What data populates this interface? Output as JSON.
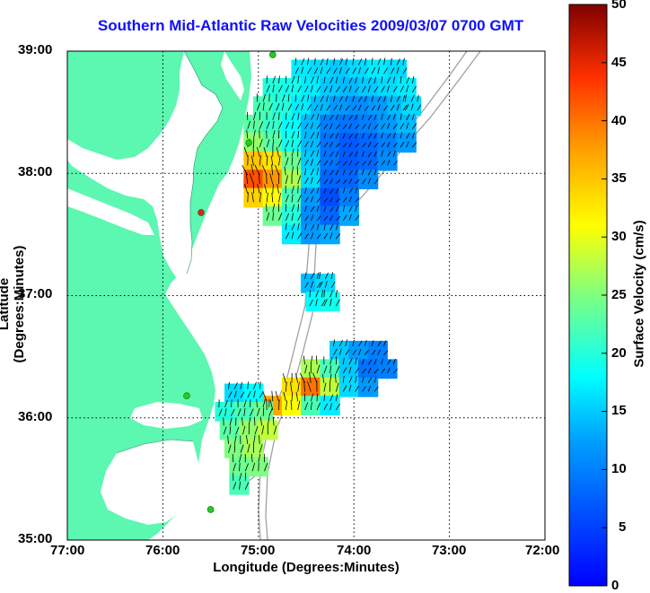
{
  "title": "Southern Mid-Atlantic Raw Velocities 2009/03/07 0700 GMT",
  "x_axis": {
    "label": "Longitude (Degrees:Minutes)",
    "ticks": [
      "77:00",
      "76:00",
      "75:00",
      "74:00",
      "73:00",
      "72:00"
    ]
  },
  "y_axis": {
    "label": "Latitude (Degrees:Minutes)",
    "ticks": [
      "39:00",
      "38:00",
      "37:00",
      "36:00",
      "35:00"
    ]
  },
  "colorbar": {
    "label": "Surface Velocity (cm/s)",
    "ticks": [
      "50",
      "45",
      "40",
      "35",
      "30",
      "25",
      "20",
      "15",
      "10",
      "5",
      "0"
    ],
    "min": 0,
    "max": 50,
    "colormap": "jet"
  },
  "colors": {
    "title": "#1010ff",
    "land": "#5cf7b0",
    "ocean": "#ffffff",
    "bathymetry": "#a0a0a0",
    "grid": "#000000",
    "station_active": "#22cc22",
    "station_alert": "#dd2222"
  },
  "map": {
    "lon_range": [
      -77,
      -72
    ],
    "lat_range": [
      35,
      39
    ],
    "grid": "dotted"
  },
  "chart_data": {
    "type": "heatmap",
    "title": "Southern Mid-Atlantic Raw Velocities 2009/03/07 0700 GMT",
    "xlabel": "Longitude (Degrees:Minutes)",
    "ylabel": "Latitude (Degrees:Minutes)",
    "xlim": [
      -77,
      -72
    ],
    "ylim": [
      35,
      39
    ],
    "color_scale": {
      "label": "Surface Velocity (cm/s)",
      "min": 0,
      "max": 50
    },
    "regions": [
      {
        "cells": [
          [
            -74.55,
            38.85,
            17
          ],
          [
            -74.35,
            38.85,
            16
          ],
          [
            -74.15,
            38.85,
            15
          ],
          [
            -73.95,
            38.85,
            16
          ],
          [
            -73.75,
            38.85,
            17
          ],
          [
            -73.55,
            38.85,
            16
          ],
          [
            -74.85,
            38.7,
            20
          ],
          [
            -74.65,
            38.7,
            19
          ],
          [
            -74.45,
            38.7,
            17
          ],
          [
            -74.25,
            38.7,
            15
          ],
          [
            -74.05,
            38.7,
            14
          ],
          [
            -73.85,
            38.7,
            15
          ],
          [
            -73.65,
            38.7,
            16
          ],
          [
            -73.45,
            38.7,
            17
          ],
          [
            -74.95,
            38.55,
            22
          ],
          [
            -74.75,
            38.55,
            20
          ],
          [
            -74.55,
            38.55,
            17
          ],
          [
            -74.35,
            38.55,
            14
          ],
          [
            -74.15,
            38.55,
            12
          ],
          [
            -73.95,
            38.55,
            11
          ],
          [
            -73.75,
            38.55,
            12
          ],
          [
            -73.55,
            38.55,
            14
          ],
          [
            -73.4,
            38.55,
            16
          ],
          [
            -75.05,
            38.4,
            23
          ],
          [
            -74.85,
            38.4,
            21
          ],
          [
            -74.65,
            38.4,
            18
          ],
          [
            -74.45,
            38.4,
            14
          ],
          [
            -74.25,
            38.4,
            10
          ],
          [
            -74.05,
            38.4,
            9
          ],
          [
            -73.85,
            38.4,
            10
          ],
          [
            -73.65,
            38.4,
            12
          ],
          [
            -73.45,
            38.4,
            14
          ],
          [
            -75.05,
            38.25,
            26
          ],
          [
            -74.85,
            38.25,
            23
          ],
          [
            -74.65,
            38.25,
            19
          ],
          [
            -74.45,
            38.25,
            14
          ],
          [
            -74.25,
            38.25,
            9
          ],
          [
            -74.05,
            38.25,
            7
          ],
          [
            -73.85,
            38.25,
            8
          ],
          [
            -73.65,
            38.25,
            10
          ],
          [
            -73.45,
            38.25,
            12
          ],
          [
            -75.05,
            38.1,
            35
          ],
          [
            -74.85,
            38.1,
            33
          ],
          [
            -74.65,
            38.1,
            24
          ],
          [
            -74.45,
            38.1,
            15
          ],
          [
            -74.25,
            38.1,
            9
          ],
          [
            -74.05,
            38.1,
            7
          ],
          [
            -73.85,
            38.1,
            8
          ],
          [
            -73.65,
            38.1,
            11
          ],
          [
            -75.05,
            37.95,
            42
          ],
          [
            -74.85,
            37.95,
            38
          ],
          [
            -74.65,
            37.95,
            27
          ],
          [
            -74.45,
            37.95,
            16
          ],
          [
            -74.25,
            37.95,
            8
          ],
          [
            -74.05,
            37.95,
            8
          ],
          [
            -73.85,
            37.95,
            11
          ],
          [
            -75.05,
            37.8,
            34
          ],
          [
            -74.85,
            37.8,
            31
          ],
          [
            -74.65,
            37.8,
            22
          ],
          [
            -74.45,
            37.8,
            12
          ],
          [
            -74.25,
            37.8,
            6
          ],
          [
            -74.05,
            37.8,
            10
          ],
          [
            -74.85,
            37.65,
            24
          ],
          [
            -74.65,
            37.65,
            20
          ],
          [
            -74.45,
            37.65,
            11
          ],
          [
            -74.25,
            37.65,
            8
          ],
          [
            -74.05,
            37.65,
            13
          ],
          [
            -74.65,
            37.5,
            17
          ],
          [
            -74.45,
            37.5,
            12
          ],
          [
            -74.25,
            37.5,
            13
          ]
        ]
      },
      {
        "cells": [
          [
            -74.45,
            37.1,
            14
          ],
          [
            -74.3,
            37.1,
            16
          ],
          [
            -74.4,
            36.95,
            18
          ],
          [
            -74.25,
            36.95,
            19
          ]
        ]
      },
      {
        "cells": [
          [
            -74.15,
            36.55,
            15
          ],
          [
            -73.95,
            36.55,
            12
          ],
          [
            -73.75,
            36.55,
            10
          ],
          [
            -74.45,
            36.4,
            27
          ],
          [
            -74.25,
            36.4,
            22
          ],
          [
            -74.05,
            36.4,
            15
          ],
          [
            -73.85,
            36.4,
            9
          ],
          [
            -73.65,
            36.4,
            10
          ],
          [
            -74.65,
            36.25,
            33
          ],
          [
            -74.45,
            36.25,
            40
          ],
          [
            -74.25,
            36.25,
            28
          ],
          [
            -74.05,
            36.25,
            16
          ],
          [
            -73.85,
            36.25,
            12
          ],
          [
            -74.85,
            36.1,
            37
          ],
          [
            -74.65,
            36.1,
            31
          ],
          [
            -74.45,
            36.1,
            22
          ],
          [
            -74.25,
            36.1,
            17
          ]
        ]
      },
      {
        "cells": [
          [
            -75.25,
            36.2,
            16
          ],
          [
            -75.05,
            36.2,
            18
          ],
          [
            -75.35,
            36.05,
            20
          ],
          [
            -75.15,
            36.05,
            22
          ],
          [
            -74.95,
            36.05,
            24
          ],
          [
            -75.3,
            35.9,
            23
          ],
          [
            -75.1,
            35.9,
            26
          ],
          [
            -74.9,
            35.9,
            28
          ],
          [
            -75.25,
            35.75,
            25
          ],
          [
            -75.05,
            35.75,
            27
          ],
          [
            -75.2,
            35.6,
            24
          ],
          [
            -75.0,
            35.6,
            25
          ],
          [
            -75.2,
            35.45,
            22
          ]
        ]
      }
    ],
    "stations": [
      {
        "lon": -74.85,
        "lat": 38.97,
        "status": "active"
      },
      {
        "lon": -75.1,
        "lat": 38.25,
        "status": "active"
      },
      {
        "lon": -75.6,
        "lat": 37.68,
        "status": "alert"
      },
      {
        "lon": -75.75,
        "lat": 36.18,
        "status": "active"
      },
      {
        "lon": -75.5,
        "lat": 35.25,
        "status": "active"
      }
    ]
  }
}
